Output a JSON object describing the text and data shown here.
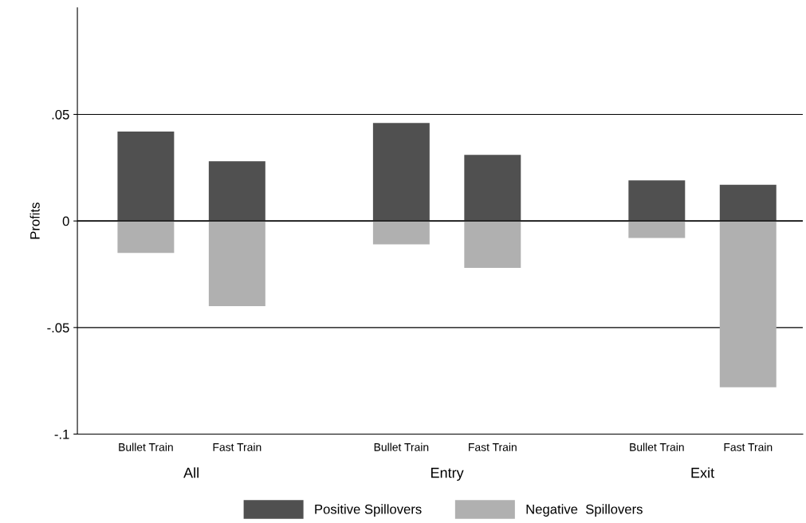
{
  "chart_data": {
    "type": "bar",
    "ylabel": "Profits",
    "categories": [
      "Bullet Train",
      "Fast Train",
      "Bullet Train",
      "Fast Train",
      "Bullet Train",
      "Fast Train"
    ],
    "series": [
      {
        "name": "Positive Spillovers",
        "color": "#505050",
        "values": [
          0.042,
          0.028,
          0.046,
          0.031,
          0.019,
          0.017
        ]
      },
      {
        "name": "Negative  Spillovers",
        "color": "#b0b0b0",
        "values": [
          -0.015,
          -0.04,
          -0.011,
          -0.022,
          -0.008,
          -0.078
        ]
      }
    ],
    "annotations": [
      "All",
      "Entry",
      "Exit"
    ],
    "ylim": [
      -0.1,
      0.1
    ],
    "yticks": [
      {
        "value": -0.1,
        "label": "-.1"
      },
      {
        "value": -0.05,
        "label": "-.05"
      },
      {
        "value": 0,
        "label": "0"
      },
      {
        "value": 0.05,
        "label": ".05"
      }
    ],
    "grid": "y",
    "legend": "bottom",
    "stacked": true
  }
}
